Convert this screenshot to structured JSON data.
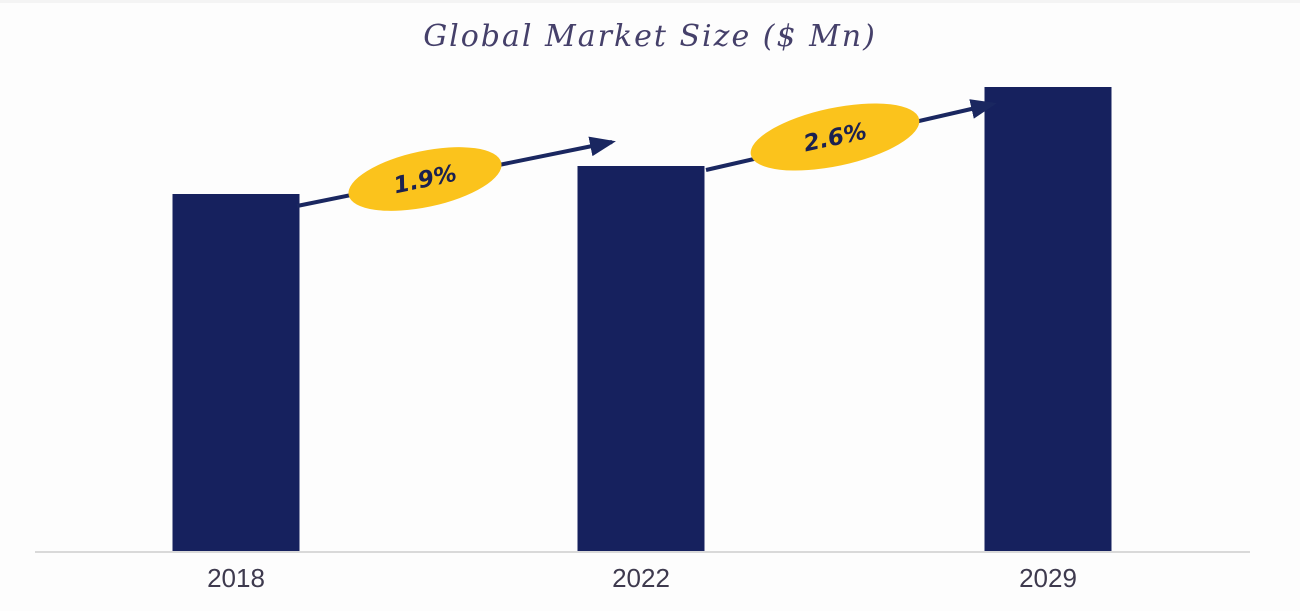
{
  "chart_data": {
    "type": "bar",
    "title": "Global Market Size ($ Mn)",
    "categories": [
      "2018",
      "2022",
      "2029"
    ],
    "value_axis_visible": false,
    "relative_heights": [
      0.769,
      0.83,
      1.0
    ],
    "annotations": [
      {
        "label": "1.9%",
        "between": [
          "2018",
          "2022"
        ],
        "shape": "ellipse-on-arrow"
      },
      {
        "label": "2.6%",
        "between": [
          "2022",
          "2029"
        ],
        "shape": "ellipse-on-arrow"
      }
    ],
    "xlabel": "",
    "ylabel": "",
    "grid": false,
    "legend": false
  },
  "colors": {
    "bar": "#16215E",
    "arrow": "#1A2760",
    "annotation_ellipse": "#FBC31C",
    "annotation_text": "#1B2150",
    "title_text": "#45406A",
    "tick_text": "#3E3A4E",
    "axis_line": "#D9D9D9",
    "background": "#FDFDFD"
  }
}
